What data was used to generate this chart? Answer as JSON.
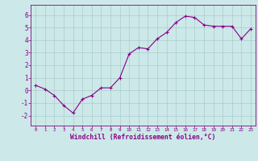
{
  "x": [
    0,
    1,
    2,
    3,
    4,
    5,
    6,
    7,
    8,
    9,
    10,
    11,
    12,
    13,
    14,
    15,
    16,
    17,
    18,
    19,
    20,
    21,
    22,
    23
  ],
  "y": [
    0.4,
    0.1,
    -0.4,
    -1.2,
    -1.8,
    -0.7,
    -0.4,
    0.2,
    0.2,
    1.0,
    2.9,
    3.4,
    3.3,
    4.1,
    4.6,
    5.4,
    5.9,
    5.8,
    5.2,
    5.1,
    5.1,
    5.1,
    4.1,
    4.9
  ],
  "xlim": [
    -0.5,
    23.5
  ],
  "ylim": [
    -2.8,
    6.8
  ],
  "yticks": [
    -2,
    -1,
    0,
    1,
    2,
    3,
    4,
    5,
    6
  ],
  "xticks": [
    0,
    1,
    2,
    3,
    4,
    5,
    6,
    7,
    8,
    9,
    10,
    11,
    12,
    13,
    14,
    15,
    16,
    17,
    18,
    19,
    20,
    21,
    22,
    23
  ],
  "xlabel": "Windchill (Refroidissement éolien,°C)",
  "line_color": "#880088",
  "marker": "+",
  "bg_color": "#cce8e8",
  "grid_color": "#aacccc",
  "xlabel_color": "#880088",
  "tick_color": "#880088",
  "font_family": "monospace"
}
